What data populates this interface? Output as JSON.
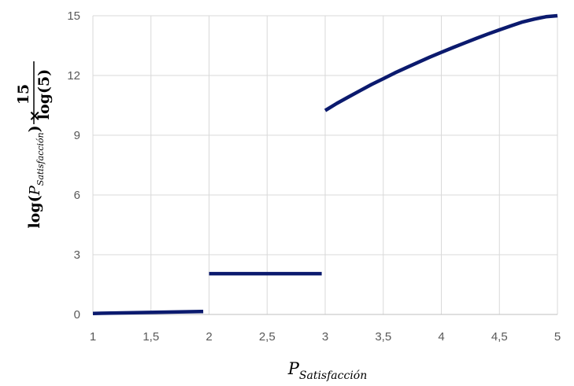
{
  "chart_data": {
    "type": "line",
    "xlabel": {
      "main": "P",
      "subscript": "Satisfacción"
    },
    "ylabel": {
      "prefix": "log",
      "inner_main": "P",
      "inner_subscript": "Satisfacción",
      "times": "×",
      "fraction_numerator": "15",
      "fraction_denominator": "log(5)"
    },
    "xlim": [
      1,
      5
    ],
    "ylim": [
      0,
      15
    ],
    "x_ticks": [
      "1",
      "1,5",
      "2",
      "2,5",
      "3",
      "3,5",
      "4",
      "4,5",
      "5"
    ],
    "x_tick_values": [
      1,
      1.5,
      2,
      2.5,
      3,
      3.5,
      4,
      4.5,
      5
    ],
    "y_ticks": [
      "0",
      "3",
      "6",
      "9",
      "12",
      "15"
    ],
    "y_tick_values": [
      0,
      3,
      6,
      9,
      12,
      15
    ],
    "grid": true,
    "color": "#0b1a6e",
    "segments": [
      {
        "x": [
          1,
          1.95
        ],
        "y": [
          0.05,
          0.15
        ]
      },
      {
        "x": [
          2,
          2.97
        ],
        "y": [
          2.05,
          2.05
        ]
      },
      {
        "x": [
          3,
          3.1,
          3.2,
          3.3,
          3.4,
          3.5,
          3.6,
          3.7,
          3.8,
          3.9,
          4,
          4.1,
          4.2,
          4.3,
          4.4,
          4.5,
          4.6,
          4.7,
          4.8,
          4.9,
          5
        ],
        "y": [
          10.24,
          10.6,
          10.92,
          11.24,
          11.55,
          11.84,
          12.13,
          12.4,
          12.66,
          12.92,
          13.16,
          13.4,
          13.63,
          13.86,
          14.08,
          14.29,
          14.49,
          14.69,
          14.83,
          14.95,
          15
        ]
      }
    ]
  }
}
